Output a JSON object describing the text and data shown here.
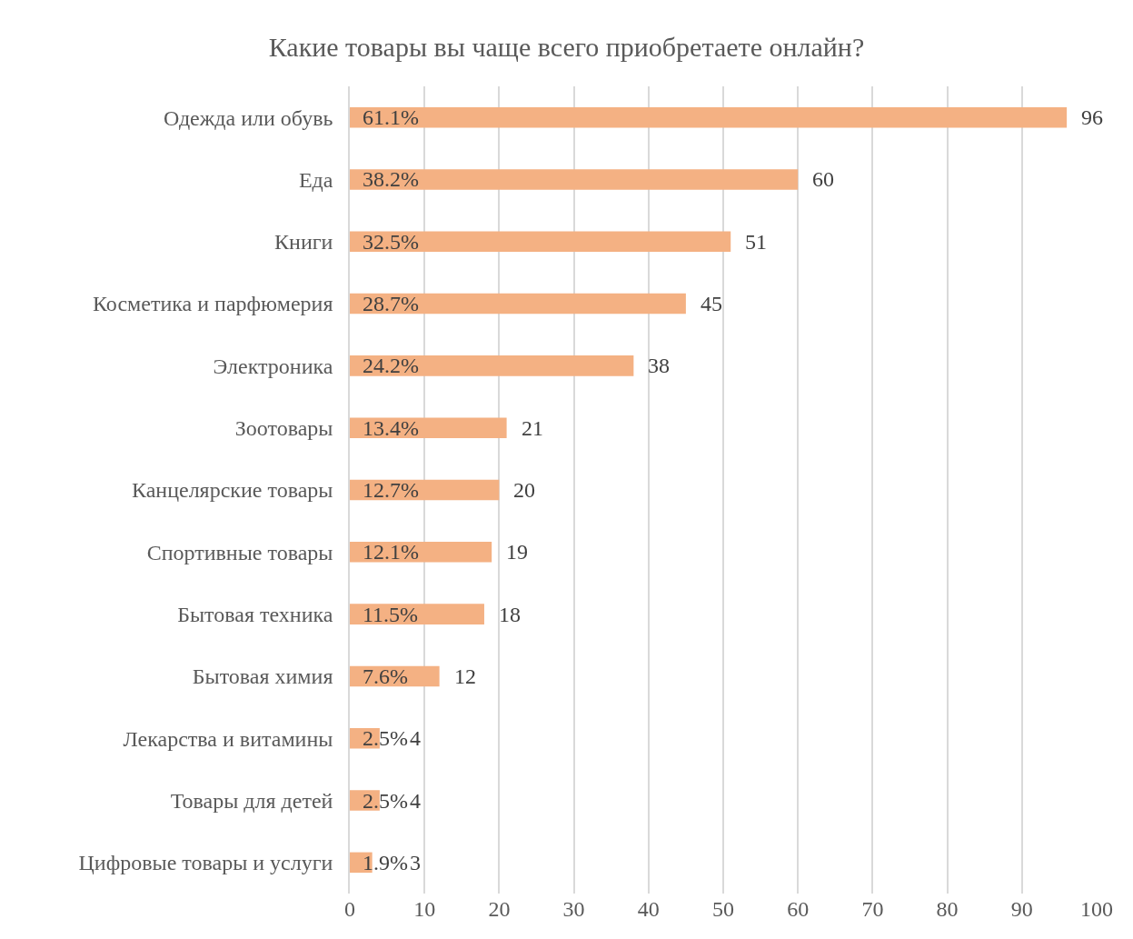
{
  "chart_data": {
    "type": "bar",
    "orientation": "horizontal",
    "title": "Какие товары вы чаще всего приобретаете онлайн?",
    "categories": [
      "Одежда или обувь",
      "Еда",
      "Книги",
      "Косметика и парфюмерия",
      "Электроника",
      "Зоотовары",
      "Канцелярские товары",
      "Спортивные товары",
      "Бытовая техника",
      "Бытовая химия",
      "Лекарства и витамины",
      "Товары для детей",
      "Цифровые товары и услуги"
    ],
    "values": [
      96,
      60,
      51,
      45,
      38,
      21,
      20,
      19,
      18,
      12,
      4,
      4,
      3
    ],
    "data_labels": true,
    "annotations": [
      "61.1%",
      "38.2%",
      "32.5%",
      "28.7%",
      "24.2%",
      "13.4%",
      "12.7%",
      "12.1%",
      "11.5%",
      "7.6%",
      "2.5%",
      "2.5%",
      "1.9%"
    ],
    "color": "#f4b183",
    "xlim": [
      0,
      100
    ],
    "xticks": [
      0,
      10,
      20,
      30,
      40,
      50,
      60,
      70,
      80,
      90,
      100
    ],
    "grid": "x",
    "legend": false
  }
}
